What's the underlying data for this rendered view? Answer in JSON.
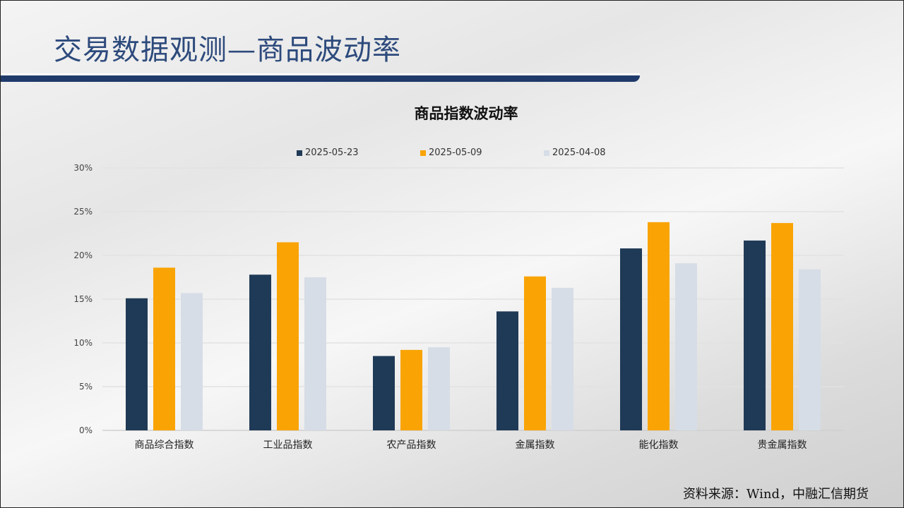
{
  "slide": {
    "title": "交易数据观测—商品波动率",
    "source": "资料来源：Wind，中融汇信期货"
  },
  "chart_data": {
    "type": "bar",
    "title": "商品指数波动率",
    "categories": [
      "商品综合指数",
      "工业品指数",
      "农产品指数",
      "金属指数",
      "能化指数",
      "贵金属指数"
    ],
    "series": [
      {
        "name": "2025-05-23",
        "color": "#1f3a56",
        "values": [
          15.1,
          17.8,
          8.5,
          13.6,
          20.8,
          21.7
        ]
      },
      {
        "name": "2025-05-09",
        "color": "#f9a404",
        "values": [
          18.6,
          21.5,
          9.2,
          17.6,
          23.8,
          23.7
        ]
      },
      {
        "name": "2025-04-08",
        "color": "#d6dde6",
        "values": [
          15.7,
          17.5,
          9.5,
          16.3,
          19.1,
          18.4
        ]
      }
    ],
    "ylim": [
      0,
      30
    ],
    "yticks": [
      "0%",
      "5%",
      "10%",
      "15%",
      "20%",
      "25%",
      "30%"
    ],
    "grid": true,
    "legend_position": "top"
  }
}
